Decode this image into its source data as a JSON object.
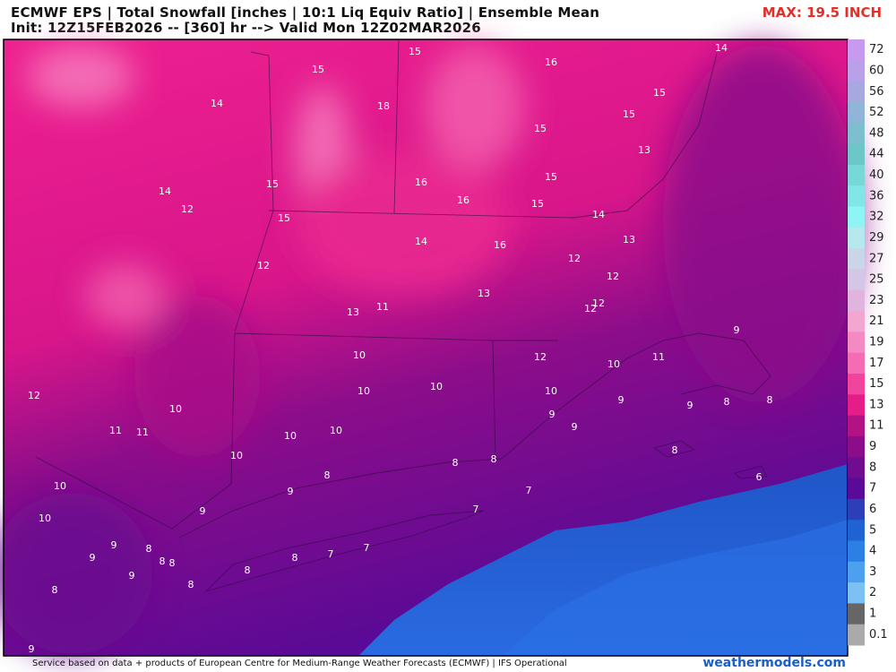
{
  "header": {
    "title": "ECMWF EPS | Total Snowfall [inches | 10:1 Liq Equiv Ratio] | Ensemble Mean",
    "subtitle": "Init: 12Z15FEB2026 -- [360] hr --> Valid Mon 12Z02MAR2026",
    "max_label": "MAX: 19.5 INCH"
  },
  "map_labels": [
    15,
    15,
    16,
    14,
    15,
    14,
    18,
    15,
    15,
    13,
    14,
    15,
    16,
    15,
    12,
    16,
    15,
    15,
    14,
    14,
    16,
    13,
    12,
    12,
    12,
    13,
    12,
    12,
    11,
    13,
    9,
    10,
    12,
    10,
    11,
    10,
    10,
    12,
    10,
    9,
    9,
    8,
    8,
    10,
    9,
    9,
    11,
    11,
    10,
    10,
    10,
    8,
    8,
    8,
    8,
    10,
    6,
    9,
    7,
    10,
    7,
    9,
    9,
    8,
    7,
    9,
    8,
    8,
    7,
    8,
    9,
    8,
    8,
    8,
    9
  ],
  "colorbar": {
    "labels": [
      72,
      60,
      56,
      52,
      48,
      44,
      40,
      36,
      32,
      29,
      27,
      25,
      23,
      21,
      19,
      17,
      15,
      13,
      11,
      9,
      8,
      7,
      6,
      5,
      4,
      3,
      2,
      1,
      0.1
    ],
    "colors": [
      "#c79af0",
      "#b9a0e8",
      "#a8a8e0",
      "#8fb6d8",
      "#7dbfcf",
      "#6dc7c6",
      "#78d8d6",
      "#82e6e6",
      "#8ef4f4",
      "#b7e8ee",
      "#c9d6ea",
      "#d4c6e6",
      "#e0b4dc",
      "#f3a6d0",
      "#f58ac2",
      "#f46cb4",
      "#f0449e",
      "#e51d88",
      "#b31284",
      "#8c0d8a",
      "#700c90",
      "#5a0a96",
      "#2c3fb8",
      "#1f62d2",
      "#2a80e4",
      "#4da0ee",
      "#7cc0f4",
      "#666",
      "#aaa"
    ]
  },
  "footer": {
    "credit": "Service based on data + products of European Centre for Medium-Range Weather Forecasts (ECMWF) | IFS Operational",
    "site": "weathermodels.com"
  }
}
